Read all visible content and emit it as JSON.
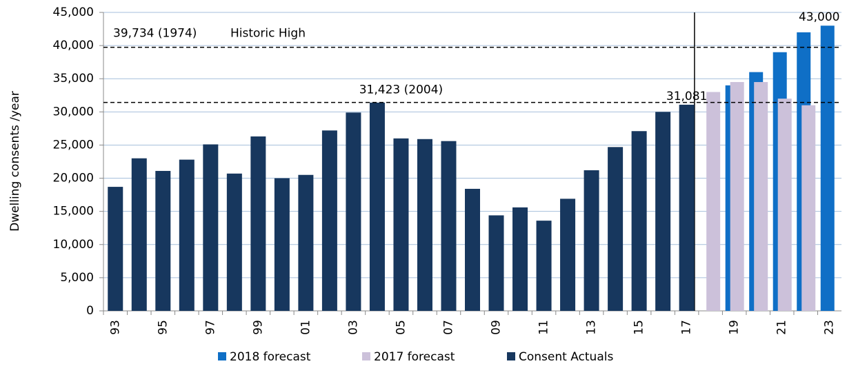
{
  "chart_data": {
    "type": "bar",
    "y_label": "Dwelling consents /year",
    "categories": [
      "93",
      null,
      "95",
      null,
      "97",
      null,
      "99",
      null,
      "01",
      null,
      "03",
      null,
      "05",
      null,
      "07",
      null,
      "09",
      null,
      "11",
      null,
      "13",
      null,
      "15",
      null,
      "17",
      null,
      "19",
      null,
      "21",
      null,
      "23"
    ],
    "series": [
      {
        "name": "2018 forecast",
        "color": "#0f6fc6",
        "values": [
          null,
          null,
          null,
          null,
          null,
          null,
          null,
          null,
          null,
          null,
          null,
          null,
          null,
          null,
          null,
          null,
          null,
          null,
          null,
          null,
          null,
          null,
          null,
          null,
          null,
          null,
          34000,
          36000,
          39000,
          42000,
          43000
        ],
        "value_labels": [
          null,
          null,
          null,
          null,
          null,
          null,
          null,
          null,
          null,
          null,
          null,
          null,
          null,
          null,
          null,
          null,
          null,
          null,
          null,
          null,
          null,
          null,
          null,
          null,
          null,
          null,
          null,
          null,
          null,
          null,
          "43,000"
        ]
      },
      {
        "name": "2017 forecast",
        "color": "#ccc1da",
        "values": [
          null,
          null,
          null,
          null,
          null,
          null,
          null,
          null,
          null,
          null,
          null,
          null,
          null,
          null,
          null,
          null,
          null,
          null,
          null,
          null,
          null,
          null,
          null,
          null,
          null,
          33000,
          34500,
          34500,
          32000,
          31000,
          null
        ]
      },
      {
        "name": "Consent Actuals",
        "color": "#17375e",
        "values": [
          18700,
          23000,
          21100,
          22800,
          25100,
          20700,
          26300,
          20000,
          20500,
          27200,
          29900,
          31400,
          26000,
          25900,
          25600,
          18400,
          14400,
          15600,
          13600,
          16900,
          21200,
          24700,
          27100,
          30000,
          31081,
          null,
          null,
          null,
          null,
          null,
          null
        ],
        "value_labels": [
          null,
          null,
          null,
          null,
          null,
          null,
          null,
          null,
          null,
          null,
          null,
          null,
          null,
          null,
          null,
          null,
          null,
          null,
          null,
          null,
          null,
          null,
          null,
          null,
          "31,081",
          null,
          null,
          null,
          null,
          null,
          null
        ]
      }
    ],
    "reference_lines": [
      {
        "value": 39734,
        "label": "39,734 (1974)",
        "annotation": "Historic High"
      },
      {
        "value": 31423,
        "label": "31,423 (2004)"
      }
    ],
    "ylim": [
      0,
      45000
    ],
    "yticks": [
      {
        "value": 0,
        "label": "0"
      },
      {
        "value": 5000,
        "label": "5,000"
      },
      {
        "value": 10000,
        "label": "10,000"
      },
      {
        "value": 15000,
        "label": "15,000"
      },
      {
        "value": 20000,
        "label": "20,000"
      },
      {
        "value": 25000,
        "label": "25,000"
      },
      {
        "value": 30000,
        "label": "30,000"
      },
      {
        "value": 35000,
        "label": "35,000"
      },
      {
        "value": 40000,
        "label": "40,000"
      },
      {
        "value": 45000,
        "label": "45,000"
      }
    ],
    "grid": true,
    "legend": "bottom"
  }
}
